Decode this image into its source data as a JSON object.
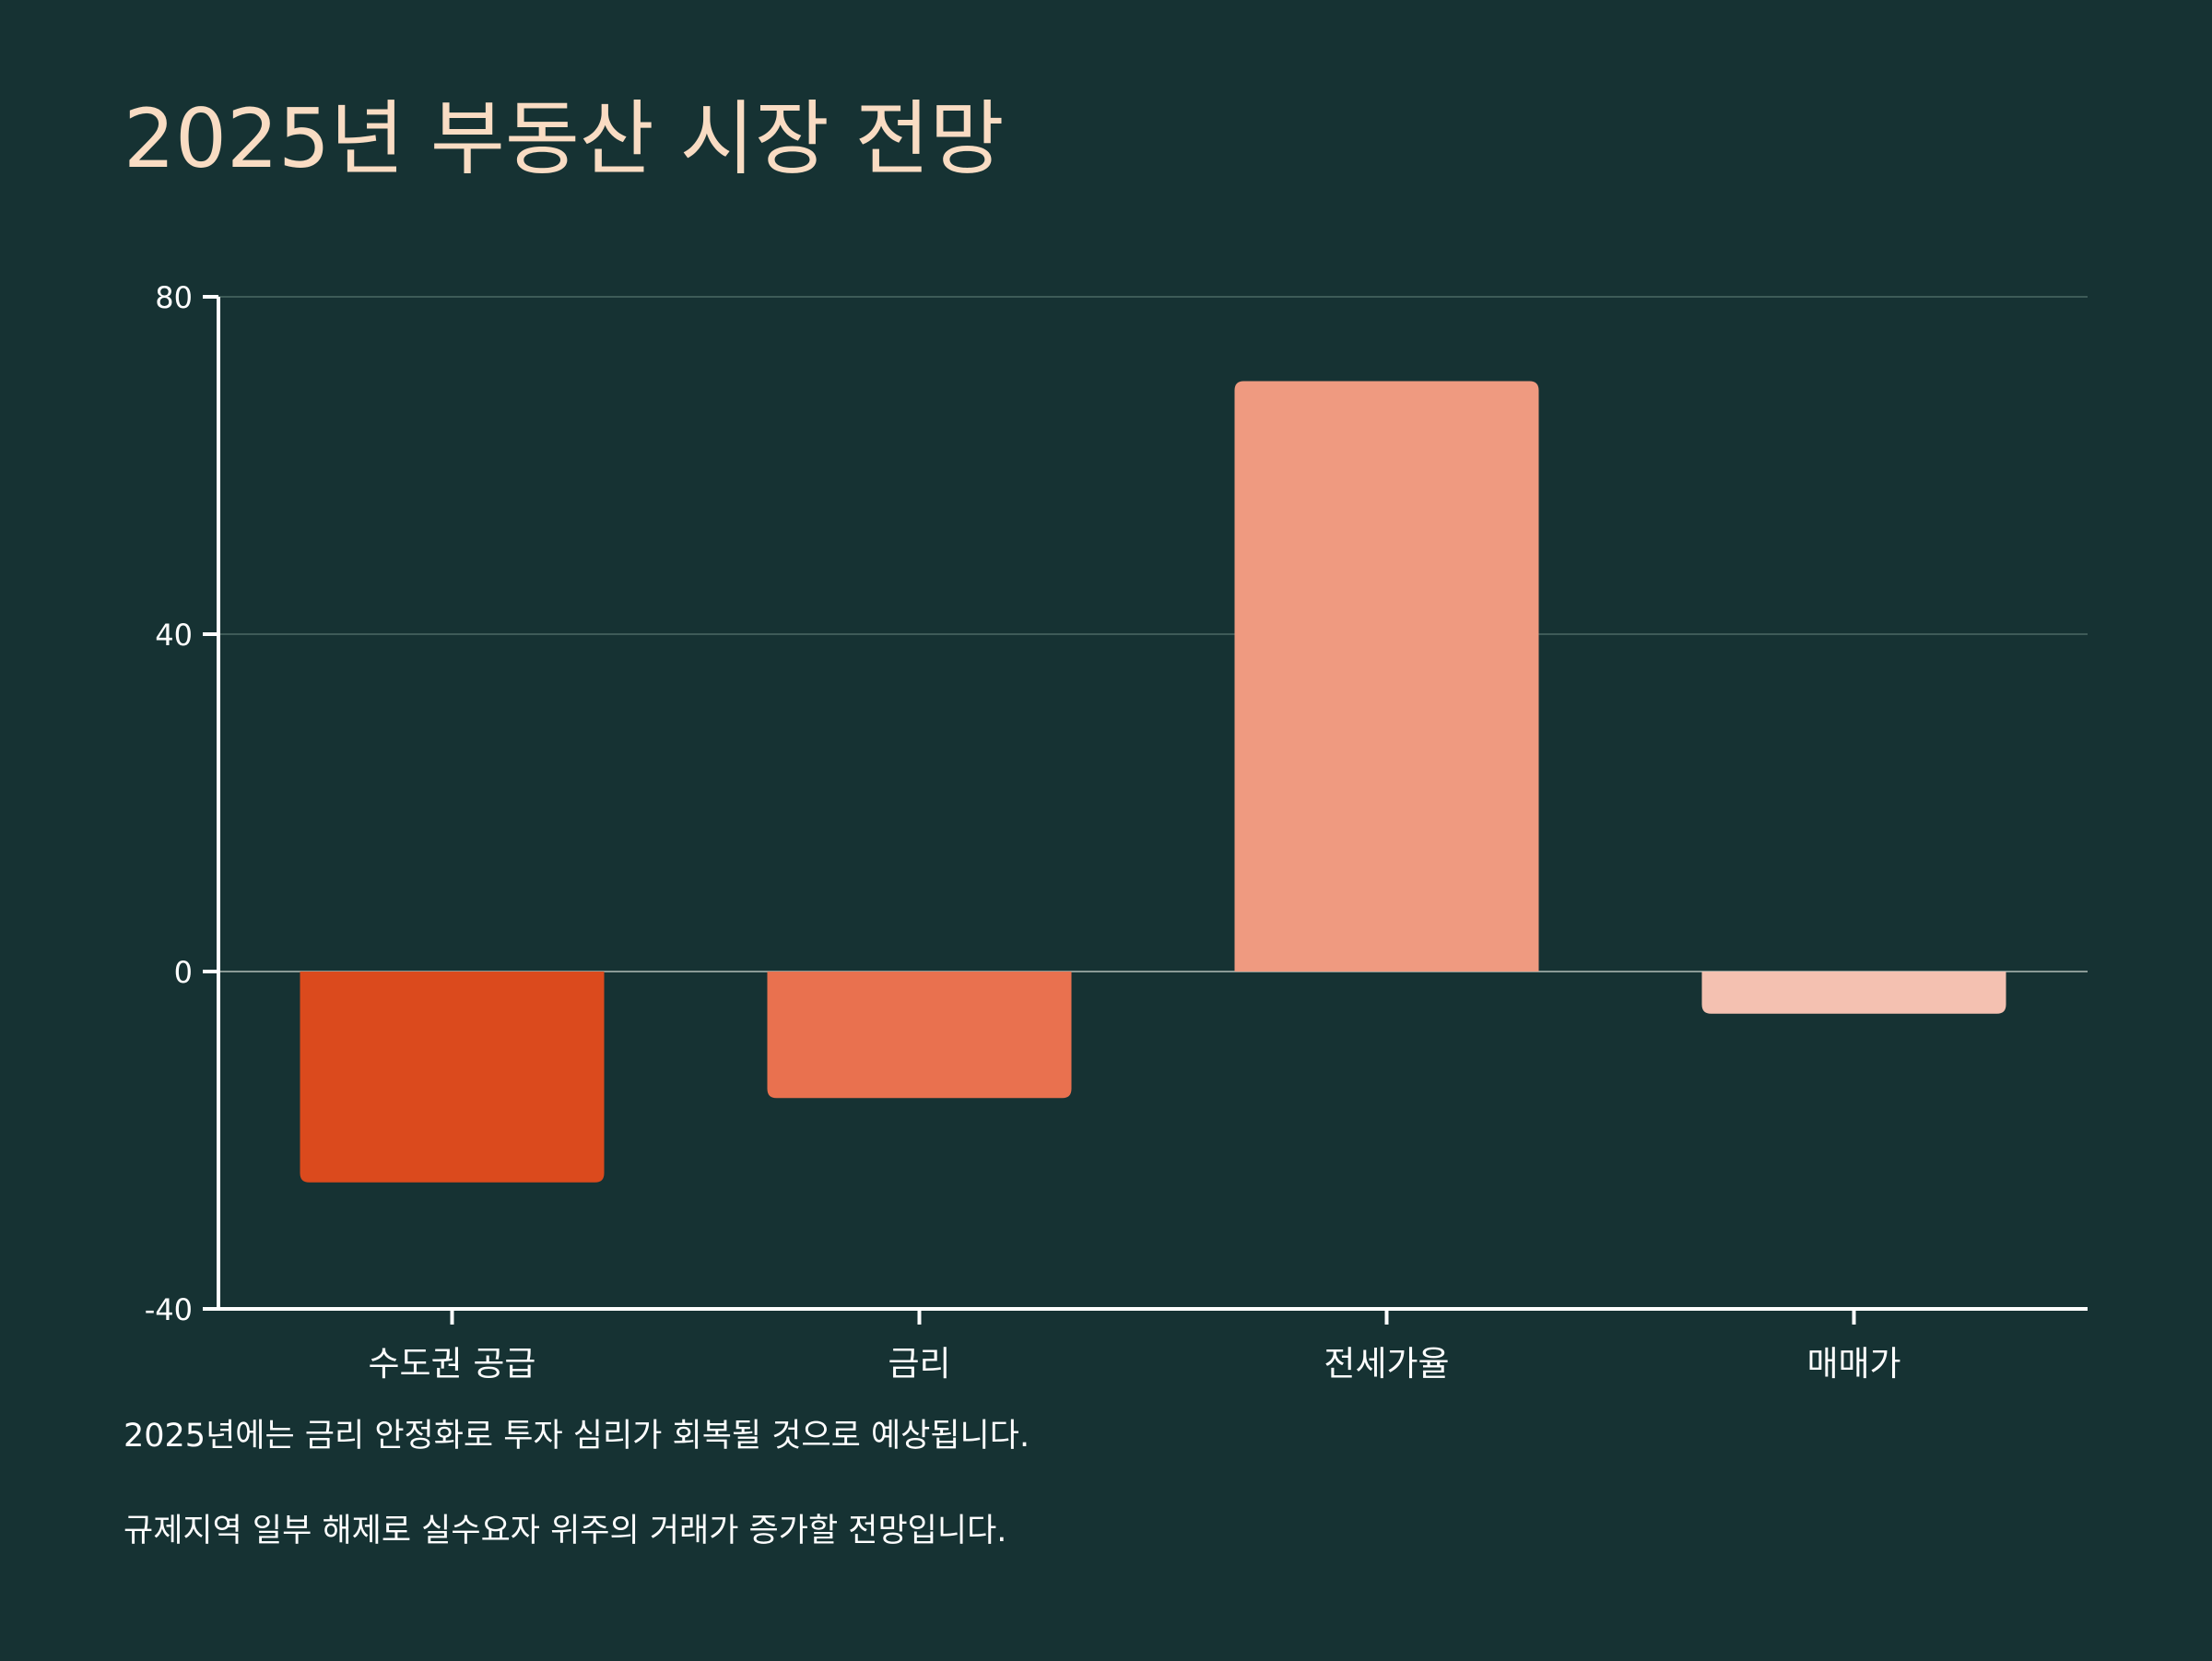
{
  "page": {
    "title": "2025년 부동산 시장 전망"
  },
  "colors": {
    "background": "#163233",
    "title": "#f9dcc3",
    "axis": "#ffffff",
    "grid": "#3e5b58",
    "zero_line": "#8a9a96",
    "text": "#ffffff"
  },
  "chart_data": {
    "type": "bar",
    "title": "",
    "xlabel": "",
    "ylabel": "",
    "categories": [
      "수도권 공급",
      "금리",
      "전세가율",
      "매매가"
    ],
    "values": [
      -25,
      -15,
      70,
      -5
    ],
    "bar_colors": [
      "#db4a1d",
      "#e9714f",
      "#ef9a80",
      "#f4c1b1"
    ],
    "ylim": [
      -40,
      80
    ],
    "yticks": [
      -40,
      0,
      40,
      80
    ],
    "ytick_labels": [
      "-40",
      "0",
      "40",
      "80"
    ],
    "grid": true,
    "legend": "none"
  },
  "notes": [
    "2025년에는 금리 안정화로 투자 심리가 회복될 것으로 예상됩니다.",
    "규제지역 일부 해제로 실수요자 위주의 거래가 증가할 전망입니다."
  ]
}
